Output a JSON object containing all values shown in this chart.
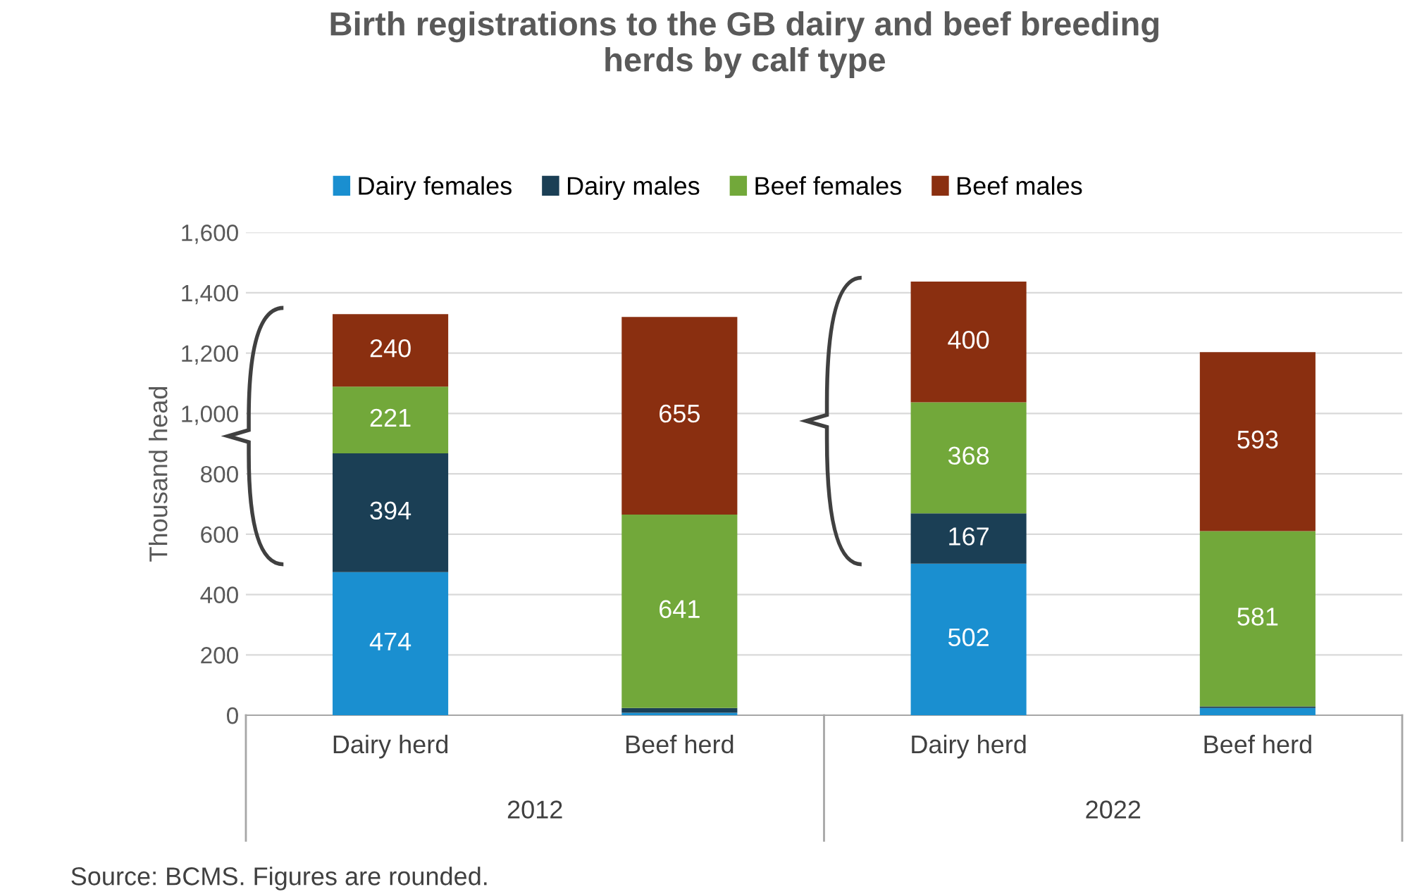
{
  "chart_data": {
    "type": "bar",
    "stacked": true,
    "title": "Birth registrations to the GB dairy and beef breeding\nherds by calf type",
    "ylabel": "Thousand head",
    "categories": [
      "Dairy herd",
      "Beef herd",
      "Dairy herd",
      "Beef herd"
    ],
    "series": [
      {
        "name": "Dairy females",
        "color": "#1a8fd0",
        "values": [
          474,
          8,
          502,
          24
        ],
        "value_labels": [
          "474",
          null,
          "502",
          null
        ]
      },
      {
        "name": "Dairy males",
        "color": "#1b3f55",
        "values": [
          394,
          16,
          167,
          5
        ],
        "value_labels": [
          "394",
          null,
          "167",
          null
        ]
      },
      {
        "name": "Beef females",
        "color": "#72a83a",
        "values": [
          221,
          641,
          368,
          581
        ],
        "value_labels": [
          "221",
          "641",
          "368",
          "581"
        ]
      },
      {
        "name": "Beef males",
        "color": "#8a2f10",
        "values": [
          240,
          655,
          400,
          593
        ],
        "value_labels": [
          "240",
          "655",
          "400",
          "593"
        ]
      }
    ],
    "ylim": [
      0,
      1600
    ],
    "yticks": [
      0,
      {
        "value": 200,
        "label": "200"
      },
      {
        "value": 400,
        "label": "400"
      },
      {
        "value": 600,
        "label": "600"
      },
      {
        "value": 800,
        "label": "800"
      },
      {
        "value": 1000,
        "label": "1,000"
      },
      {
        "value": 1200,
        "label": "1,200"
      },
      {
        "value": 1400,
        "label": "1,400"
      },
      {
        "value": 1600,
        "label": "1,600"
      }
    ],
    "grid": "y",
    "legend": "top",
    "annotations": [
      "2012",
      "2022",
      "Source: BCMS. Figures are rounded."
    ]
  }
}
